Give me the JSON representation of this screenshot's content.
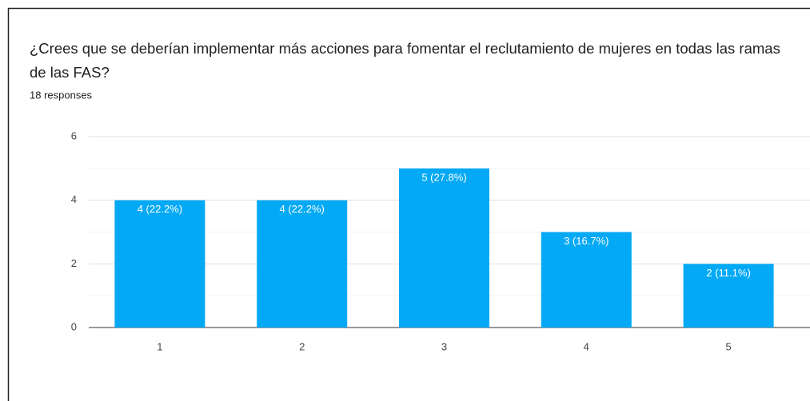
{
  "chart_data": {
    "type": "bar",
    "title": "¿Crees que se deberían implementar más acciones para fomentar el reclutamiento de mujeres en todas las ramas de las FAS?",
    "subtitle": "18 responses",
    "categories": [
      "1",
      "2",
      "3",
      "4",
      "5"
    ],
    "values": [
      4,
      4,
      5,
      3,
      2
    ],
    "value_labels": [
      "4 (22.2%)",
      "4 (22.2%)",
      "5 (27.8%)",
      "3 (16.7%)",
      "2 (11.1%)"
    ],
    "color": "#03a9f4",
    "ylim": [
      0,
      6
    ],
    "yticks": [
      0,
      2,
      4,
      6
    ],
    "minor_yticks": [
      1,
      3,
      5
    ],
    "grid": true
  }
}
